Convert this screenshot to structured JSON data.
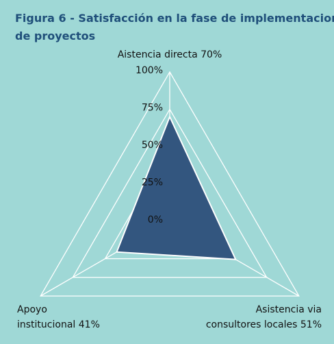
{
  "chart_data": {
    "type": "radar",
    "title": [
      "Figura 6 - Satisfacción en la fase de implementacion",
      "de proyectos"
    ],
    "categories": [
      [
        "Aistencia directa"
      ],
      [
        "Asistencia via",
        "consultores locales"
      ],
      [
        "Apoyo",
        "institucional"
      ]
    ],
    "values": [
      70,
      51,
      41
    ],
    "value_labels": [
      "70%",
      "51%",
      "41%"
    ],
    "color": "#33567f",
    "ylim": [
      0,
      100
    ],
    "yticks": [
      {
        "value": 0,
        "label": "0%"
      },
      {
        "value": 25,
        "label": "25%"
      },
      {
        "value": 50,
        "label": "50%"
      },
      {
        "value": 75,
        "label": "75%"
      },
      {
        "value": 100,
        "label": "100%"
      }
    ],
    "grid": true
  }
}
